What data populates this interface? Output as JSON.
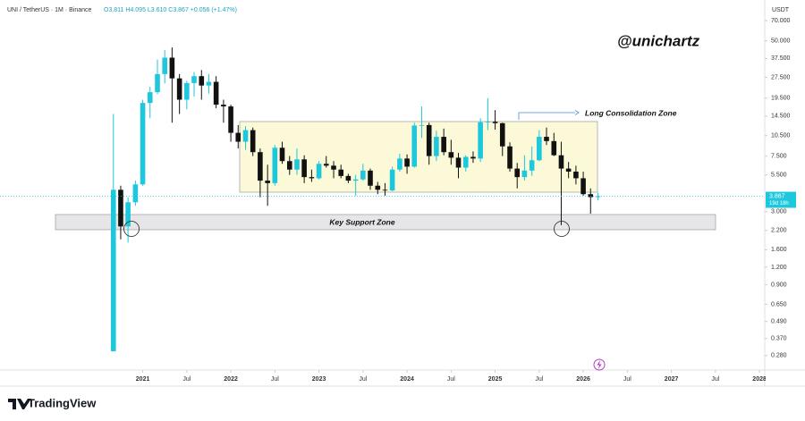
{
  "chart_data": {
    "type": "candlestick",
    "title": "UNI / TetherUS · 1M · Binance",
    "quote": "O3.811 H4.095 L3.610 C3.867 +0.056 (+1.47%)",
    "y_axis_label": "USDT",
    "watermark": "@unichartz",
    "annotations": [
      "Long Consolidation Zone",
      "Key Support Zone"
    ],
    "last_price_label": "3.867",
    "countdown": "19d 18h",
    "log_scale": true,
    "up_color": "#1ec8dc",
    "down_color": "#111111",
    "x": [
      2020.667,
      2020.75,
      2020.833,
      2020.917,
      2021,
      2021.083,
      2021.167,
      2021.25,
      2021.333,
      2021.417,
      2021.5,
      2021.583,
      2021.667,
      2021.75,
      2021.833,
      2021.917,
      2022,
      2022.083,
      2022.167,
      2022.25,
      2022.333,
      2022.417,
      2022.5,
      2022.583,
      2022.667,
      2022.75,
      2022.833,
      2022.917,
      2023,
      2023.083,
      2023.167,
      2023.25,
      2023.333,
      2023.417,
      2023.5,
      2023.583,
      2023.667,
      2023.75,
      2023.833,
      2023.917,
      2024,
      2024.083,
      2024.167,
      2024.25,
      2024.333,
      2024.417,
      2024.5,
      2024.583,
      2024.667,
      2024.75,
      2024.833,
      2024.917,
      2025,
      2025.083,
      2025.167,
      2025.25,
      2025.333,
      2025.417,
      2025.5,
      2025.583,
      2025.667,
      2025.75,
      2025.833,
      2025.917,
      2026,
      2026.083,
      2026.167
    ],
    "open": [
      0.3,
      4.3,
      2.35,
      3.5,
      4.7,
      18,
      21.5,
      29,
      38,
      27,
      19,
      25,
      28,
      24,
      25.5,
      17.5,
      17,
      11,
      9.5,
      11.5,
      8,
      5,
      4.8,
      8.6,
      6.9,
      6.0,
      7.1,
      5.3,
      5.2,
      6.6,
      6.4,
      6.0,
      5.4,
      5.0,
      5.1,
      5.9,
      4.6,
      4.3,
      4.25,
      6.0,
      7.2,
      6.3,
      12.4,
      12.5,
      7.5,
      10.3,
      8.0,
      7.3,
      6.2,
      7.4,
      7.2,
      13.1,
      13.2,
      12.9,
      8.8,
      6.1,
      5.3,
      5.9,
      7.0,
      10.3,
      9.6,
      7.6,
      6.1,
      5.8,
      5.2,
      4.0,
      3.811
    ],
    "high": [
      15,
      4.6,
      3.8,
      5.0,
      19,
      23.5,
      36.8,
      43,
      45,
      29,
      26,
      30,
      31,
      29,
      28,
      19,
      17.5,
      12.5,
      12.3,
      12,
      8.5,
      6.5,
      9,
      9.5,
      7.5,
      8.5,
      7.6,
      6,
      6.9,
      7.5,
      6.9,
      6.5,
      5.6,
      5.5,
      6.6,
      6.1,
      4.9,
      4.8,
      6.3,
      7.8,
      7.7,
      13,
      17,
      13,
      11.4,
      11.8,
      9.8,
      7.9,
      7.6,
      8.1,
      14,
      19.5,
      16,
      13,
      9.4,
      6.7,
      7.6,
      8.8,
      11.5,
      12,
      11,
      9.5,
      6.8,
      6.4,
      5.8,
      4.4,
      4.095
    ],
    "low": [
      0.3,
      1.9,
      1.8,
      3.3,
      4.6,
      14,
      20.8,
      24.9,
      13,
      15,
      16.2,
      20,
      19,
      21,
      16.5,
      13,
      9.5,
      8.5,
      8.3,
      7.5,
      3.8,
      3.3,
      4.6,
      6.6,
      5.5,
      5.5,
      4.8,
      4.9,
      5.1,
      6.2,
      5.2,
      5.2,
      4.8,
      3.9,
      5.0,
      4.3,
      4.0,
      3.9,
      4.2,
      5.8,
      5.6,
      6.2,
      10.1,
      6.5,
      6.9,
      7.6,
      6.5,
      5.2,
      5.8,
      6.7,
      6.8,
      11.5,
      11.6,
      7.5,
      5.8,
      4.4,
      5.0,
      5.4,
      6.9,
      9.0,
      7.5,
      2.4,
      5.2,
      4.7,
      3.9,
      2.9,
      3.61
    ],
    "close": [
      4.3,
      2.35,
      3.5,
      4.7,
      18,
      21.5,
      29,
      38,
      27,
      19,
      25,
      28,
      24,
      25.5,
      17.5,
      17,
      11,
      9.5,
      11.5,
      8,
      5,
      4.8,
      8.6,
      6.9,
      6.0,
      7.1,
      5.3,
      5.2,
      6.6,
      6.4,
      6.0,
      5.4,
      5.0,
      5.1,
      5.9,
      4.6,
      4.3,
      4.25,
      6.0,
      7.2,
      6.3,
      12.4,
      12.5,
      7.5,
      10.3,
      8.0,
      7.3,
      6.2,
      7.4,
      7.2,
      13.1,
      13.2,
      12.9,
      8.8,
      6.1,
      5.3,
      5.9,
      7.0,
      10.3,
      9.6,
      7.6,
      6.1,
      5.8,
      5.2,
      4.0,
      3.811,
      3.867
    ],
    "xlim": [
      2019.38,
      2028.06
    ],
    "xticks": [
      2021,
      {
        "value": 2021.5,
        "label": "Jul"
      },
      2022,
      {
        "value": 2022.5,
        "label": "Jul"
      },
      2023,
      {
        "value": 2023.5,
        "label": "Jul"
      },
      2024,
      {
        "value": 2024.5,
        "label": "Jul"
      },
      2025,
      {
        "value": 2025.5,
        "label": "Jul"
      },
      2026,
      {
        "value": 2026.5,
        "label": "Jul"
      },
      2027,
      {
        "value": 2027.5,
        "label": "Jul"
      },
      2028
    ],
    "ylim": [
      0.22,
      90
    ],
    "yticks": [
      {
        "value": 70,
        "label": "70.000"
      },
      {
        "value": 50,
        "label": "50.000"
      },
      {
        "value": 37.5,
        "label": "37.500"
      },
      {
        "value": 27.5,
        "label": "27.500"
      },
      {
        "value": 19.5,
        "label": "19.500"
      },
      {
        "value": 14.5,
        "label": "14.500"
      },
      {
        "value": 10.5,
        "label": "10.500"
      },
      {
        "value": 7.5,
        "label": "7.500"
      },
      {
        "value": 5.5,
        "label": "5.500"
      },
      {
        "value": 3,
        "label": "3.000"
      },
      {
        "value": 2.2,
        "label": "2.200"
      },
      {
        "value": 1.6,
        "label": "1.600"
      },
      {
        "value": 1.2,
        "label": "1.200"
      },
      {
        "value": 0.9,
        "label": "0.900"
      },
      {
        "value": 0.65,
        "label": "0.650"
      },
      {
        "value": 0.49,
        "label": "0.490"
      },
      {
        "value": 0.37,
        "label": "0.370"
      },
      {
        "value": 0.28,
        "label": "0.280"
      }
    ]
  },
  "footer": {
    "brand": "TradingView"
  }
}
